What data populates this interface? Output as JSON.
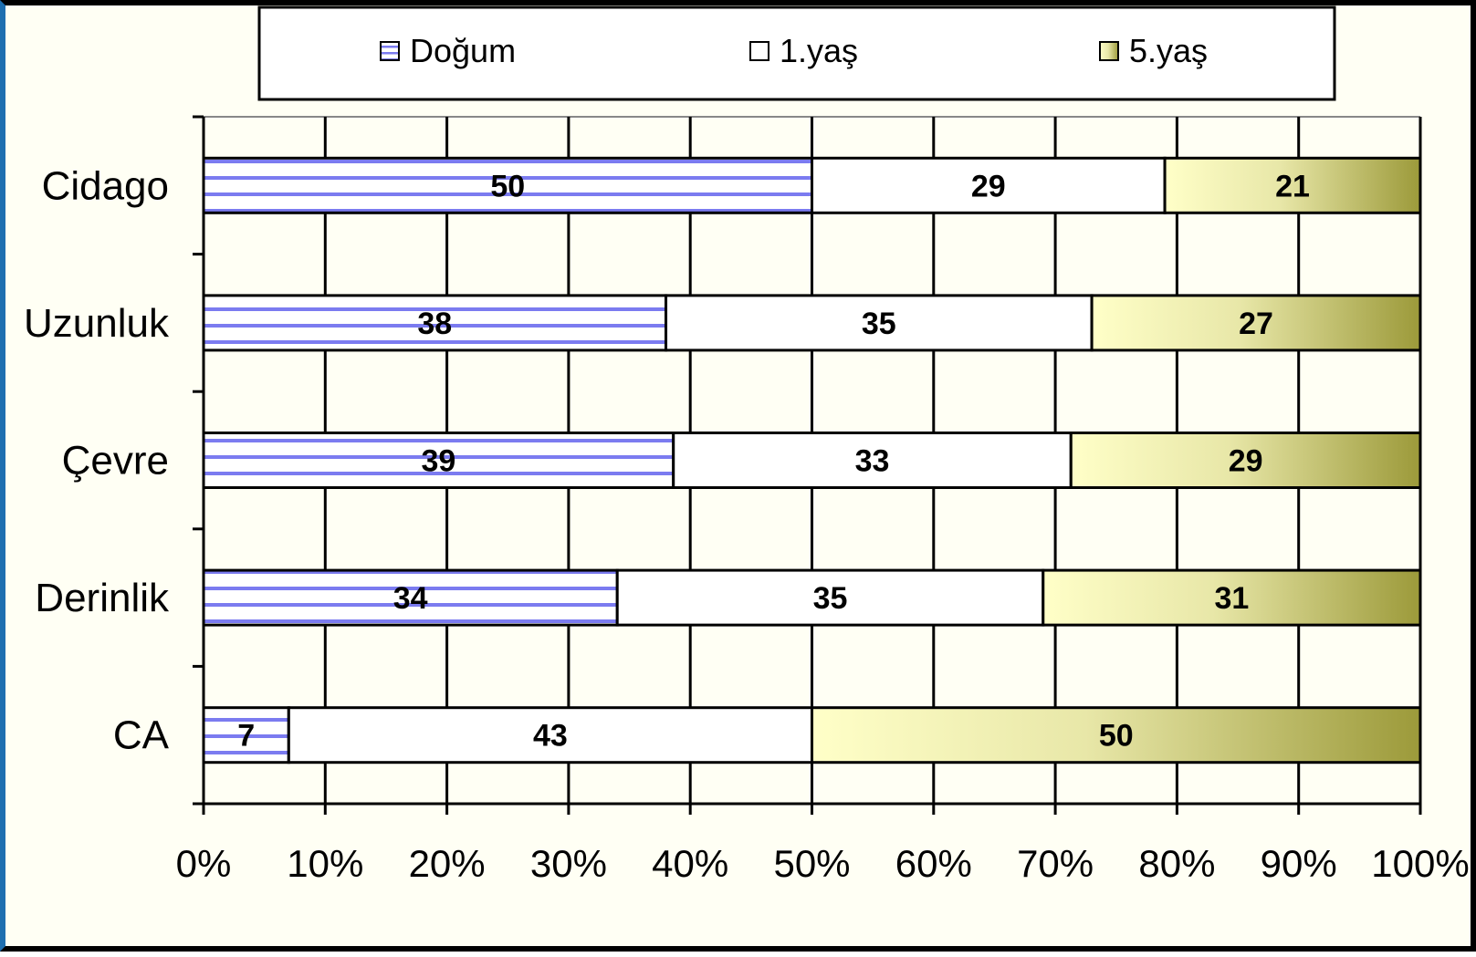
{
  "chart_data": {
    "type": "bar",
    "orientation": "horizontal",
    "stacked": "percent",
    "title": "",
    "xlabel": "",
    "ylabel": "",
    "xlim": [
      0,
      100
    ],
    "x_tick_labels": [
      "0%",
      "10%",
      "20%",
      "30%",
      "40%",
      "50%",
      "60%",
      "70%",
      "80%",
      "90%",
      "100%"
    ],
    "categories": [
      "Cidago",
      "Uzunluk",
      "Çevre",
      "Derinlik",
      "CA"
    ],
    "series": [
      {
        "name": "Doğum",
        "values": [
          50,
          38,
          39,
          34,
          7
        ],
        "color": "#7b7bf0",
        "fill": "horizontal-stripes"
      },
      {
        "name": "1.yaş",
        "values": [
          29,
          35,
          33,
          35,
          43
        ],
        "color": "#ffffff",
        "fill": "solid"
      },
      {
        "name": "5.yaş",
        "values": [
          21,
          27,
          29,
          31,
          50
        ],
        "color": "#9c9a3a",
        "fill": "gradient",
        "gradient_from": "#ffffc8"
      }
    ],
    "data_labels": true,
    "grid": true,
    "legend": "top"
  }
}
